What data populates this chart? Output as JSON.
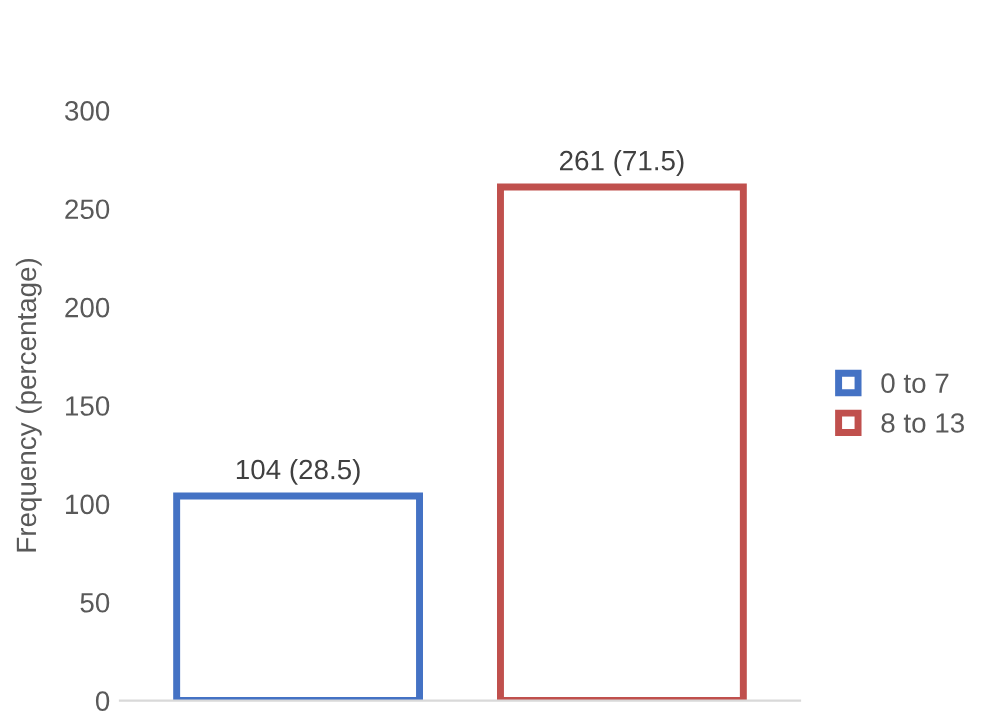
{
  "chart_data": {
    "type": "bar",
    "ylabel": "Frequency (percentage)",
    "categories": [
      null,
      null
    ],
    "series": [
      {
        "name": "0 to 7",
        "color": "#4472c4",
        "values": [
          104,
          null
        ],
        "value_labels": [
          "104 (28.5)",
          null
        ]
      },
      {
        "name": "8 to 13",
        "color": "#c0504d",
        "values": [
          null,
          261
        ],
        "value_labels": [
          null,
          "261 (71.5)"
        ]
      }
    ],
    "ylim": [
      0,
      300
    ],
    "yticks": [
      0,
      50,
      100,
      150,
      200,
      250,
      300
    ],
    "grid": false,
    "legend": "right"
  }
}
